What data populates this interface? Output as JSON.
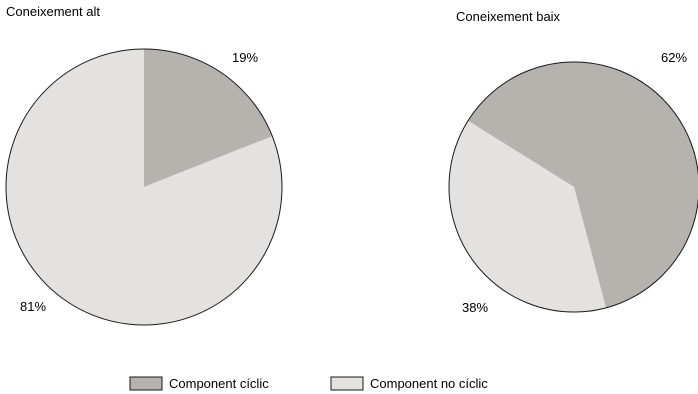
{
  "chart_data": [
    {
      "type": "pie",
      "title": "Coneixement alt",
      "slices": [
        {
          "name": "Component cíclic",
          "value": 19,
          "label": "19%"
        },
        {
          "name": "Component no cíclic",
          "value": 81,
          "label": "81%"
        }
      ]
    },
    {
      "type": "pie",
      "title": "Coneixement baix",
      "slices": [
        {
          "name": "Component cíclic",
          "value": 62,
          "label": "62%"
        },
        {
          "name": "Component no cíclic",
          "value": 38,
          "label": "38%"
        }
      ]
    }
  ],
  "legend": {
    "placement": "bottom-center",
    "items": [
      {
        "label": "Component cíclic",
        "color": "#b6b3af"
      },
      {
        "label": "Component no cíclic",
        "color": "#e3e2e0"
      }
    ]
  },
  "colors": {
    "cyclic": "#b6b3af",
    "noncyclic": "#e3e2e0",
    "stroke": "#1a1a1a"
  }
}
